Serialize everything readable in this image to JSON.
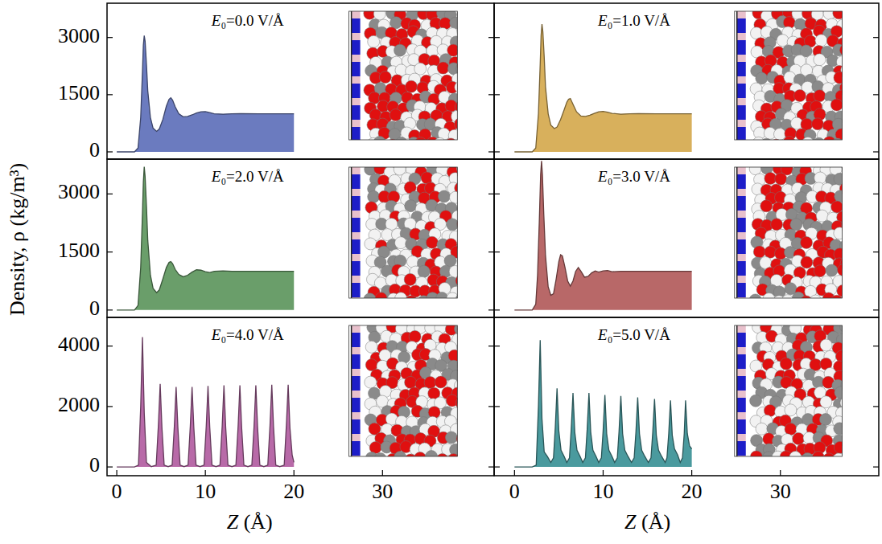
{
  "figure": {
    "y_label": "Density, ρ (kg/m³)"
  },
  "chart_data": [
    {
      "type": "area",
      "title": "E₀=0.0 V/Å",
      "color": "#6b7bbf",
      "x": [
        0,
        1,
        2,
        2.4,
        2.7,
        2.9,
        3.0,
        3.1,
        3.2,
        3.35,
        3.5,
        3.8,
        4.1,
        4.5,
        4.8,
        5.2,
        5.6,
        5.9,
        6.1,
        6.3,
        6.6,
        7.0,
        7.5,
        8.0,
        8.5,
        9.0,
        9.5,
        10.0,
        10.5,
        11,
        12,
        13,
        14,
        16,
        18,
        20
      ],
      "values": [
        0,
        0,
        0,
        100,
        900,
        2100,
        2800,
        3050,
        2900,
        2300,
        1600,
        900,
        620,
        540,
        600,
        850,
        1200,
        1380,
        1420,
        1360,
        1180,
        1000,
        920,
        930,
        970,
        1020,
        1050,
        1055,
        1030,
        1000,
        990,
        1000,
        1005,
        1000,
        1000,
        1000
      ],
      "xlim": [
        -1.1,
        42.6
      ],
      "ylim": [
        -190,
        3900
      ],
      "xticks": [
        0,
        10,
        20,
        30
      ],
      "yticks": [
        0,
        1500,
        3000
      ],
      "tick_labels": "y"
    },
    {
      "type": "area",
      "title": "E₀=1.0 V/Å",
      "color": "#d8b05c",
      "x": [
        0,
        1,
        2,
        2.4,
        2.7,
        2.9,
        3.0,
        3.1,
        3.2,
        3.35,
        3.5,
        3.8,
        4.1,
        4.5,
        4.8,
        5.2,
        5.6,
        5.9,
        6.1,
        6.3,
        6.6,
        7.0,
        7.5,
        8.0,
        8.5,
        9.0,
        9.5,
        10.0,
        10.5,
        11,
        12,
        13,
        14,
        16,
        18,
        20
      ],
      "values": [
        0,
        0,
        0,
        100,
        1000,
        2300,
        3050,
        3350,
        3150,
        2500,
        1700,
        1000,
        700,
        610,
        650,
        850,
        1100,
        1300,
        1380,
        1400,
        1250,
        1050,
        940,
        930,
        960,
        1010,
        1050,
        1060,
        1040,
        1010,
        990,
        1000,
        1005,
        1000,
        1000,
        1000
      ],
      "xlim": [
        -2.3,
        41.1
      ],
      "ylim": [
        -190,
        3900
      ],
      "xticks": [
        0,
        10,
        20,
        30
      ],
      "yticks": [
        0,
        1500,
        3000
      ],
      "tick_labels": false
    },
    {
      "type": "area",
      "title": "E₀=2.0 V/Å",
      "color": "#6a9e6a",
      "x": [
        0,
        1,
        2,
        2.4,
        2.7,
        2.9,
        3.0,
        3.1,
        3.2,
        3.35,
        3.5,
        3.8,
        4.1,
        4.5,
        4.8,
        5.2,
        5.6,
        5.9,
        6.1,
        6.3,
        6.6,
        7.0,
        7.5,
        8.0,
        8.5,
        9.0,
        9.5,
        10.0,
        10.5,
        11,
        12,
        13,
        14,
        16,
        18,
        20
      ],
      "values": [
        0,
        0,
        0,
        120,
        1100,
        2500,
        3300,
        3700,
        3450,
        2700,
        1800,
        900,
        560,
        450,
        520,
        800,
        1100,
        1230,
        1250,
        1200,
        1050,
        920,
        860,
        900,
        980,
        1040,
        1030,
        990,
        970,
        1000,
        1010,
        1000,
        1000,
        1000,
        1000,
        1000
      ],
      "xlim": [
        -1.1,
        42.6
      ],
      "ylim": [
        -190,
        3900
      ],
      "xticks": [
        0,
        10,
        20,
        30
      ],
      "yticks": [
        0,
        1500,
        3000
      ],
      "tick_labels": "y"
    },
    {
      "type": "area",
      "title": "E₀=3.0 V/Å",
      "color": "#b86868",
      "x": [
        0,
        1,
        2,
        2.4,
        2.6,
        2.8,
        2.95,
        3.05,
        3.15,
        3.3,
        3.5,
        3.8,
        4.1,
        4.4,
        4.7,
        5.0,
        5.2,
        5.4,
        5.7,
        6.0,
        6.3,
        6.6,
        6.9,
        7.2,
        7.5,
        7.9,
        8.3,
        8.7,
        9.1,
        9.5,
        10.0,
        10.5,
        11,
        12,
        13,
        14,
        16,
        18,
        20
      ],
      "values": [
        0,
        0,
        0,
        150,
        900,
        2300,
        3500,
        3850,
        3500,
        2500,
        1400,
        600,
        380,
        420,
        800,
        1250,
        1430,
        1400,
        1100,
        750,
        620,
        750,
        1000,
        1100,
        1000,
        850,
        870,
        960,
        1010,
        980,
        1010,
        1020,
        990,
        1000,
        1000,
        1000,
        1000,
        1000,
        1000
      ],
      "xlim": [
        -2.3,
        41.1
      ],
      "ylim": [
        -190,
        3900
      ],
      "xticks": [
        0,
        10,
        20,
        30
      ],
      "yticks": [
        0,
        1500,
        3000
      ],
      "tick_labels": false
    },
    {
      "type": "area",
      "title": "E₀=4.0 V/Å",
      "color": "#b86aa8",
      "x_label": "Z (Å)",
      "x": [
        0,
        2.0,
        2.45,
        2.7,
        2.9,
        3.1,
        3.35,
        3.9,
        4.45,
        4.7,
        4.9,
        5.1,
        5.35,
        5.8,
        6.25,
        6.5,
        6.7,
        6.9,
        7.15,
        7.6,
        8.05,
        8.3,
        8.5,
        8.7,
        8.95,
        9.4,
        9.85,
        10.1,
        10.3,
        10.5,
        10.75,
        11.2,
        11.65,
        11.9,
        12.1,
        12.3,
        12.55,
        13.0,
        13.45,
        13.7,
        13.9,
        14.1,
        14.35,
        14.8,
        15.25,
        15.5,
        15.7,
        15.9,
        16.15,
        16.6,
        17.05,
        17.3,
        17.5,
        17.7,
        17.95,
        18.4,
        18.9,
        19.15,
        19.35,
        19.55,
        19.8,
        20
      ],
      "values": [
        0,
        0,
        60,
        2000,
        4300,
        1800,
        150,
        10,
        60,
        1400,
        2750,
        1300,
        60,
        10,
        60,
        1350,
        2650,
        1300,
        60,
        10,
        60,
        1350,
        2650,
        1300,
        60,
        10,
        60,
        1350,
        2680,
        1300,
        60,
        10,
        60,
        1350,
        2700,
        1300,
        60,
        10,
        60,
        1350,
        2700,
        1300,
        60,
        10,
        60,
        1350,
        2700,
        1300,
        60,
        10,
        60,
        1380,
        2720,
        1320,
        60,
        10,
        60,
        1400,
        2720,
        1300,
        400,
        150
      ],
      "xlim": [
        -1.1,
        42.6
      ],
      "ylim": [
        -290,
        4950
      ],
      "xticks": [
        0,
        10,
        20,
        30
      ],
      "yticks": [
        0,
        2000,
        4000
      ],
      "tick_labels": true
    },
    {
      "type": "area",
      "title": "E₀=5.0 V/Å",
      "color": "#4a9a9e",
      "x_label": "Z (Å)",
      "x": [
        0,
        2.0,
        2.45,
        2.7,
        2.9,
        3.1,
        3.35,
        3.7,
        4.1,
        4.4,
        4.6,
        4.8,
        5.0,
        5.25,
        5.6,
        5.9,
        6.2,
        6.4,
        6.6,
        6.8,
        7.05,
        7.4,
        7.7,
        8.0,
        8.2,
        8.4,
        8.6,
        8.85,
        9.2,
        9.5,
        9.8,
        10.0,
        10.2,
        10.4,
        10.65,
        11.0,
        11.3,
        11.6,
        11.8,
        12.0,
        12.2,
        12.45,
        12.8,
        13.2,
        13.5,
        13.7,
        13.9,
        14.1,
        14.35,
        14.7,
        15.1,
        15.4,
        15.6,
        15.8,
        16.0,
        16.25,
        16.6,
        17.0,
        17.2,
        17.4,
        17.6,
        17.8,
        18.05,
        18.4,
        18.7,
        18.95,
        19.15,
        19.3,
        19.5,
        19.75,
        20
      ],
      "values": [
        0,
        0,
        60,
        2000,
        4200,
        1600,
        500,
        350,
        150,
        300,
        1300,
        2600,
        1200,
        550,
        350,
        150,
        300,
        1250,
        2450,
        1150,
        550,
        350,
        150,
        300,
        1250,
        2450,
        1150,
        550,
        350,
        150,
        300,
        1200,
        2380,
        1100,
        550,
        350,
        150,
        300,
        1200,
        2350,
        1100,
        550,
        350,
        150,
        300,
        1150,
        2300,
        1100,
        550,
        350,
        150,
        300,
        1150,
        2250,
        1050,
        550,
        350,
        150,
        300,
        1100,
        2200,
        1050,
        600,
        400,
        150,
        300,
        1100,
        2200,
        1100,
        700,
        600
      ],
      "xlim": [
        -2.3,
        41.1
      ],
      "ylim": [
        -290,
        4950
      ],
      "xticks": [
        0,
        10,
        20,
        30
      ],
      "yticks": [
        0,
        2000,
        4000
      ],
      "tick_labels": "x"
    }
  ]
}
